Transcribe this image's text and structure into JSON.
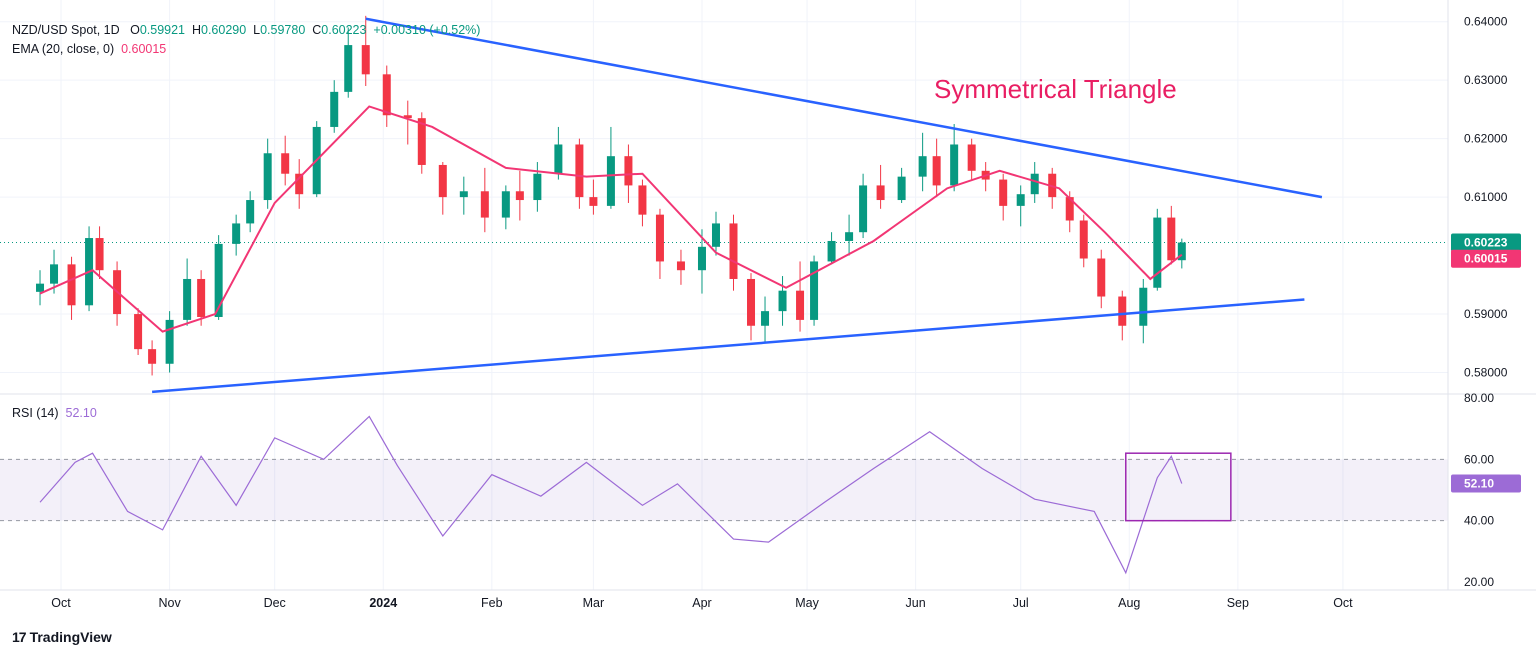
{
  "header": {
    "symbol": "NZD/USD Spot, 1D",
    "open_label": "O",
    "open": "0.59921",
    "high_label": "H",
    "high": "0.60290",
    "low_label": "L",
    "low": "0.59780",
    "close_label": "C",
    "close": "0.60223",
    "change": "+0.00310 (+0.52%)",
    "ema_label": "EMA (20, close, 0)",
    "ema_value": "0.60015",
    "rsi_label": "RSI (14)",
    "rsi_value": "52.10"
  },
  "branding": {
    "name": "TradingView"
  },
  "chart_data": {
    "type": "candlestick",
    "annotation": "Symmetrical Triangle",
    "last_close": 0.60223,
    "last_ema": 0.60015,
    "price_axis": {
      "ticks": [
        "0.64000",
        "0.63000",
        "0.62000",
        "0.61000",
        "0.59000",
        "0.58000"
      ],
      "range": [
        0.5765,
        0.642
      ],
      "price_labels": [
        "0.60223",
        "0.60015"
      ]
    },
    "rsi_axis": {
      "ticks": [
        "80.00",
        "60.00",
        "40.00",
        "20.00"
      ],
      "range": [
        20,
        80
      ],
      "band": [
        40,
        60
      ],
      "last_label": "52.10"
    },
    "time_axis": [
      "Oct",
      "Nov",
      "Dec",
      "2024",
      "Feb",
      "Mar",
      "Apr",
      "May",
      "Jun",
      "Jul",
      "Aug",
      "Sep",
      "Oct"
    ],
    "ema_points": [
      [
        "2023-09-25",
        0.5935
      ],
      [
        "2023-10-10",
        0.5975
      ],
      [
        "2023-10-30",
        0.587
      ],
      [
        "2023-11-14",
        0.59
      ],
      [
        "2023-12-01",
        0.609
      ],
      [
        "2023-12-28",
        0.6255
      ],
      [
        "2024-01-15",
        0.622
      ],
      [
        "2024-02-05",
        0.615
      ],
      [
        "2024-02-28",
        0.6135
      ],
      [
        "2024-03-15",
        0.614
      ],
      [
        "2024-04-05",
        0.6005
      ],
      [
        "2024-04-25",
        0.5945
      ],
      [
        "2024-05-20",
        0.6025
      ],
      [
        "2024-06-10",
        0.6115
      ],
      [
        "2024-06-25",
        0.6145
      ],
      [
        "2024-07-12",
        0.6115
      ],
      [
        "2024-07-25",
        0.604
      ],
      [
        "2024-08-07",
        0.596
      ],
      [
        "2024-08-16",
        0.60015
      ]
    ],
    "rsi_points": [
      [
        "2023-09-25",
        46
      ],
      [
        "2023-10-05",
        59
      ],
      [
        "2023-10-10",
        62
      ],
      [
        "2023-10-20",
        43
      ],
      [
        "2023-10-30",
        37
      ],
      [
        "2023-11-10",
        61
      ],
      [
        "2023-11-20",
        45
      ],
      [
        "2023-12-01",
        67
      ],
      [
        "2023-12-15",
        60
      ],
      [
        "2023-12-28",
        74
      ],
      [
        "2024-01-05",
        58
      ],
      [
        "2024-01-18",
        35
      ],
      [
        "2024-02-01",
        55
      ],
      [
        "2024-02-15",
        48
      ],
      [
        "2024-02-28",
        59
      ],
      [
        "2024-03-15",
        45
      ],
      [
        "2024-03-25",
        52
      ],
      [
        "2024-04-10",
        34
      ],
      [
        "2024-04-20",
        33
      ],
      [
        "2024-05-06",
        46
      ],
      [
        "2024-05-20",
        57
      ],
      [
        "2024-06-05",
        69
      ],
      [
        "2024-06-20",
        57
      ],
      [
        "2024-07-05",
        47
      ],
      [
        "2024-07-22",
        43
      ],
      [
        "2024-07-31",
        23
      ],
      [
        "2024-08-09",
        54
      ],
      [
        "2024-08-13",
        61
      ],
      [
        "2024-08-16",
        52.1
      ]
    ],
    "candles": [
      [
        "2023-09-25",
        0.5938,
        0.5975,
        0.5915,
        0.5952
      ],
      [
        "2023-09-29",
        0.5952,
        0.601,
        0.5935,
        0.5985
      ],
      [
        "2023-10-04",
        0.5985,
        0.5998,
        0.589,
        0.5915
      ],
      [
        "2023-10-09",
        0.5915,
        0.605,
        0.5905,
        0.603
      ],
      [
        "2023-10-12",
        0.603,
        0.605,
        0.596,
        0.5975
      ],
      [
        "2023-10-17",
        0.5975,
        0.599,
        0.588,
        0.59
      ],
      [
        "2023-10-23",
        0.59,
        0.591,
        0.583,
        0.584
      ],
      [
        "2023-10-27",
        0.584,
        0.5855,
        0.5795,
        0.5815
      ],
      [
        "2023-11-01",
        0.5815,
        0.5905,
        0.58,
        0.589
      ],
      [
        "2023-11-06",
        0.589,
        0.5995,
        0.588,
        0.596
      ],
      [
        "2023-11-10",
        0.596,
        0.5975,
        0.588,
        0.5895
      ],
      [
        "2023-11-15",
        0.5895,
        0.6035,
        0.589,
        0.602
      ],
      [
        "2023-11-20",
        0.602,
        0.607,
        0.6,
        0.6055
      ],
      [
        "2023-11-24",
        0.6055,
        0.611,
        0.604,
        0.6095
      ],
      [
        "2023-11-29",
        0.6095,
        0.62,
        0.608,
        0.6175
      ],
      [
        "2023-12-04",
        0.6175,
        0.6205,
        0.612,
        0.614
      ],
      [
        "2023-12-08",
        0.614,
        0.6165,
        0.608,
        0.6105
      ],
      [
        "2023-12-13",
        0.6105,
        0.623,
        0.61,
        0.622
      ],
      [
        "2023-12-18",
        0.622,
        0.63,
        0.621,
        0.628
      ],
      [
        "2023-12-22",
        0.628,
        0.639,
        0.627,
        0.636
      ],
      [
        "2023-12-27",
        0.636,
        0.641,
        0.629,
        0.631
      ],
      [
        "2024-01-02",
        0.631,
        0.6325,
        0.622,
        0.624
      ],
      [
        "2024-01-08",
        0.624,
        0.6265,
        0.619,
        0.6235
      ],
      [
        "2024-01-12",
        0.6235,
        0.6245,
        0.614,
        0.6155
      ],
      [
        "2024-01-18",
        0.6155,
        0.616,
        0.607,
        0.61
      ],
      [
        "2024-01-24",
        0.61,
        0.6135,
        0.607,
        0.611
      ],
      [
        "2024-01-30",
        0.611,
        0.615,
        0.604,
        0.6065
      ],
      [
        "2024-02-05",
        0.6065,
        0.612,
        0.6045,
        0.611
      ],
      [
        "2024-02-09",
        0.611,
        0.6145,
        0.606,
        0.6095
      ],
      [
        "2024-02-14",
        0.6095,
        0.616,
        0.6075,
        0.614
      ],
      [
        "2024-02-20",
        0.614,
        0.622,
        0.613,
        0.619
      ],
      [
        "2024-02-26",
        0.619,
        0.62,
        0.608,
        0.61
      ],
      [
        "2024-03-01",
        0.61,
        0.613,
        0.607,
        0.6085
      ],
      [
        "2024-03-06",
        0.6085,
        0.622,
        0.608,
        0.617
      ],
      [
        "2024-03-11",
        0.617,
        0.619,
        0.609,
        0.612
      ],
      [
        "2024-03-15",
        0.612,
        0.613,
        0.605,
        0.607
      ],
      [
        "2024-03-20",
        0.607,
        0.608,
        0.596,
        0.599
      ],
      [
        "2024-03-26",
        0.599,
        0.601,
        0.595,
        0.5975
      ],
      [
        "2024-04-01",
        0.5975,
        0.6045,
        0.5935,
        0.6015
      ],
      [
        "2024-04-05",
        0.6015,
        0.6075,
        0.6,
        0.6055
      ],
      [
        "2024-04-10",
        0.6055,
        0.607,
        0.594,
        0.596
      ],
      [
        "2024-04-15",
        0.596,
        0.597,
        0.5855,
        0.588
      ],
      [
        "2024-04-19",
        0.588,
        0.593,
        0.585,
        0.5905
      ],
      [
        "2024-04-24",
        0.5905,
        0.5965,
        0.588,
        0.594
      ],
      [
        "2024-04-29",
        0.594,
        0.599,
        0.587,
        0.589
      ],
      [
        "2024-05-03",
        0.589,
        0.6,
        0.588,
        0.599
      ],
      [
        "2024-05-08",
        0.599,
        0.604,
        0.5985,
        0.6025
      ],
      [
        "2024-05-13",
        0.6025,
        0.607,
        0.6,
        0.604
      ],
      [
        "2024-05-17",
        0.604,
        0.614,
        0.603,
        0.612
      ],
      [
        "2024-05-22",
        0.612,
        0.6155,
        0.608,
        0.6095
      ],
      [
        "2024-05-28",
        0.6095,
        0.615,
        0.609,
        0.6135
      ],
      [
        "2024-06-03",
        0.6135,
        0.621,
        0.611,
        0.617
      ],
      [
        "2024-06-07",
        0.617,
        0.62,
        0.61,
        0.612
      ],
      [
        "2024-06-12",
        0.612,
        0.6225,
        0.611,
        0.619
      ],
      [
        "2024-06-17",
        0.619,
        0.62,
        0.613,
        0.6145
      ],
      [
        "2024-06-21",
        0.6145,
        0.616,
        0.611,
        0.613
      ],
      [
        "2024-06-26",
        0.613,
        0.614,
        0.606,
        0.6085
      ],
      [
        "2024-07-01",
        0.6085,
        0.612,
        0.605,
        0.6105
      ],
      [
        "2024-07-05",
        0.6105,
        0.616,
        0.609,
        0.614
      ],
      [
        "2024-07-10",
        0.614,
        0.615,
        0.608,
        0.61
      ],
      [
        "2024-07-15",
        0.61,
        0.611,
        0.604,
        0.606
      ],
      [
        "2024-07-19",
        0.606,
        0.607,
        0.598,
        0.5995
      ],
      [
        "2024-07-24",
        0.5995,
        0.601,
        0.591,
        0.593
      ],
      [
        "2024-07-30",
        0.593,
        0.594,
        0.5855,
        0.588
      ],
      [
        "2024-08-05",
        0.588,
        0.596,
        0.585,
        0.5945
      ],
      [
        "2024-08-09",
        0.5945,
        0.608,
        0.594,
        0.6065
      ],
      [
        "2024-08-13",
        0.6065,
        0.6085,
        0.5985,
        0.5992
      ],
      [
        "2024-08-16",
        0.59921,
        0.6029,
        0.5978,
        0.60223
      ]
    ],
    "trendlines": [
      {
        "from": [
          "2023-12-27",
          0.6405
        ],
        "to": [
          "2024-09-25",
          0.61
        ]
      },
      {
        "from": [
          "2023-10-27",
          0.5767
        ],
        "to": [
          "2024-09-20",
          0.5925
        ]
      }
    ],
    "rsi_box": {
      "from": [
        "2024-07-31",
        62
      ],
      "to": [
        "2024-08-30",
        40
      ]
    },
    "colors": {
      "up": "#089981",
      "down": "#f23645",
      "ema": "#f23674",
      "rsi": "#9c6bd6",
      "trendline": "#2962ff",
      "annotation": "#e91e63"
    }
  }
}
